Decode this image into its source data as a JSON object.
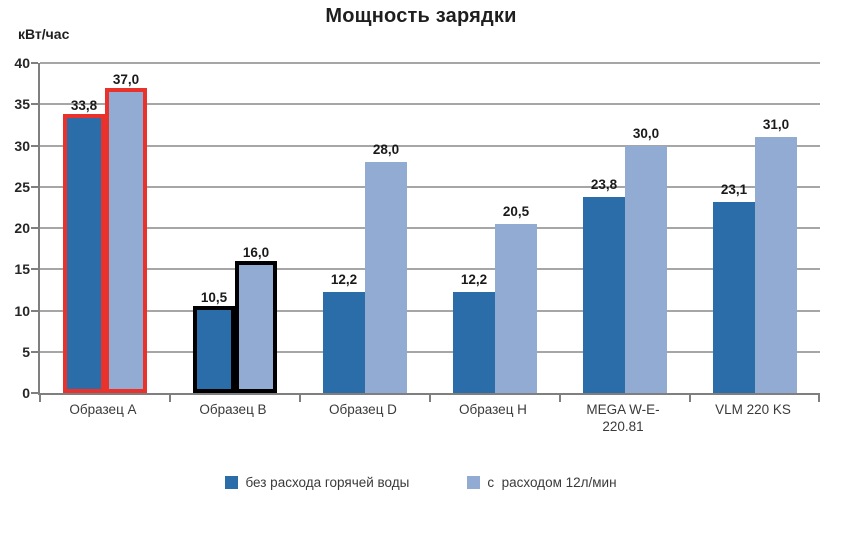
{
  "chart_data": {
    "type": "bar",
    "title": "Мощность зарядки",
    "ylabel": "кВт/час",
    "xlabel": "",
    "ylim": [
      0,
      40
    ],
    "ytick_step": 5,
    "grid": true,
    "legend_position": "bottom",
    "categories": [
      "Образец A",
      "Образец B",
      "Образец D",
      "Образец H",
      "MEGA W-E-220.81",
      "VLM 220 KS"
    ],
    "series": [
      {
        "name": "без расхода горячей воды",
        "color": "#2a6da8",
        "values": [
          33.8,
          10.5,
          12.2,
          12.2,
          23.8,
          23.1
        ],
        "labels": [
          "33,8",
          "10,5",
          "12,2",
          "12,2",
          "23,8",
          "23,1"
        ]
      },
      {
        "name": "с  расходом 12л/мин",
        "color": "#92abd3",
        "values": [
          37.0,
          16.0,
          28.0,
          20.5,
          30.0,
          31.0
        ],
        "labels": [
          "37,0",
          "16,0",
          "28,0",
          "20,5",
          "30,0",
          "31,0"
        ]
      }
    ],
    "group_highlight_borders": [
      "#e8322b",
      "#000000",
      null,
      null,
      null,
      null
    ],
    "colors": {
      "gridline": "#a6a6a6",
      "axis": "#7f7f7f",
      "highlight_red": "#e8322b",
      "highlight_black": "#000000"
    }
  }
}
